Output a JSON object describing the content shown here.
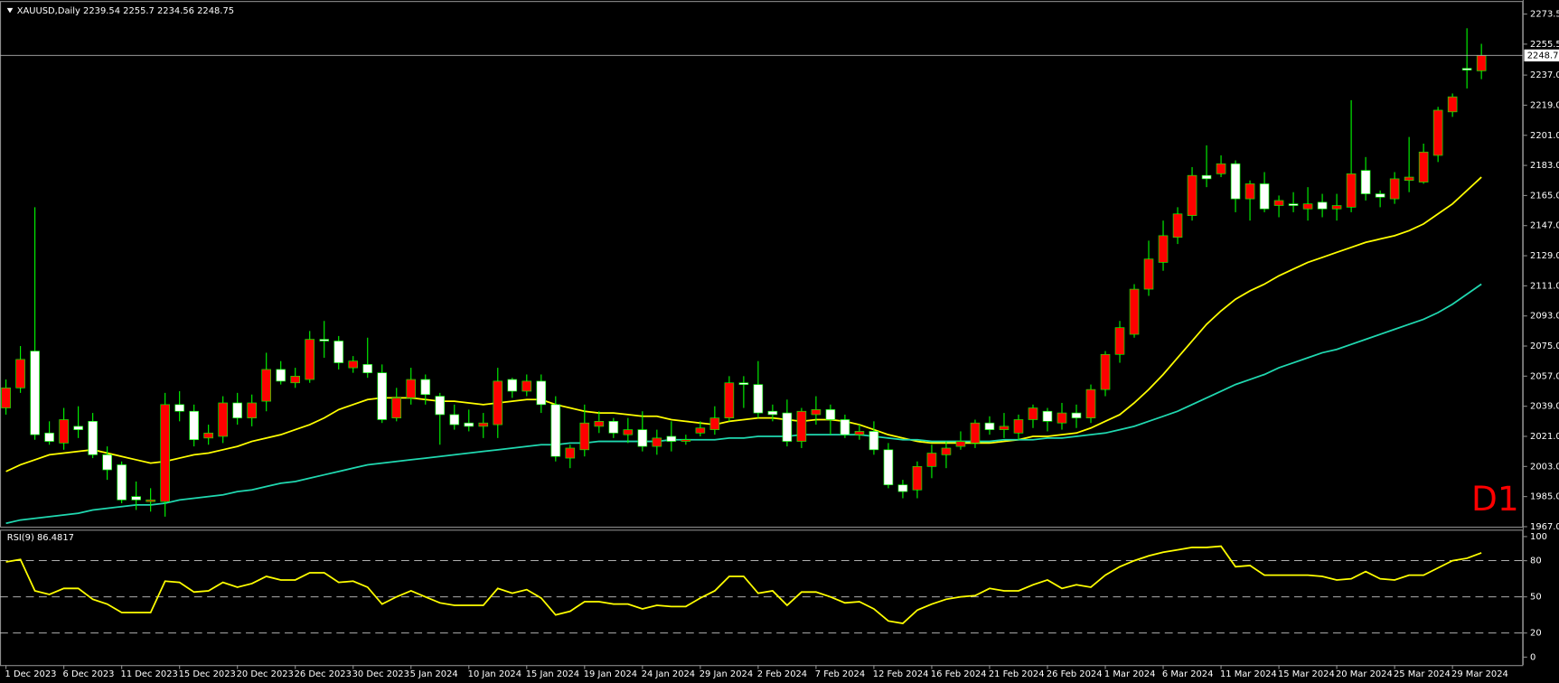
{
  "chart_data": [
    {
      "type": "candlestick",
      "title": "XAUUSD,Daily",
      "categories": [
        "1 Dec 2023",
        null,
        null,
        null,
        "6 Dec 2023",
        null,
        null,
        null,
        "11 Dec 2023",
        null,
        null,
        null,
        "15 Dec 2023",
        null,
        null,
        null,
        "20 Dec 2023",
        null,
        null,
        null,
        "26 Dec 2023",
        null,
        null,
        null,
        "30 Dec 2023",
        null,
        null,
        null,
        "5 Jan 2024",
        null,
        null,
        null,
        "10 Jan 2024",
        null,
        null,
        null,
        "15 Jan 2024",
        null,
        null,
        null,
        "19 Jan 2024",
        null,
        null,
        null,
        "24 Jan 2024",
        null,
        null,
        null,
        "29 Jan 2024",
        null,
        null,
        null,
        "2 Feb 2024",
        null,
        null,
        null,
        "7 Feb 2024",
        null,
        null,
        null,
        "12 Feb 2024",
        null,
        null,
        null,
        "16 Feb 2024",
        null,
        null,
        null,
        "21 Feb 2024",
        null,
        null,
        null,
        "26 Feb 2024",
        null,
        null,
        null,
        "1 Mar 2024",
        null,
        null,
        null,
        "6 Mar 2024",
        null,
        null,
        null,
        "11 Mar 2024",
        null,
        null,
        null,
        "15 Mar 2024",
        null,
        null,
        null,
        "20 Mar 2024",
        null,
        null,
        null,
        "25 Mar 2024",
        null,
        null,
        null,
        "29 Mar 2024",
        null,
        null
      ],
      "open": [
        2038,
        2050,
        2072,
        2023,
        2017,
        2027,
        2030,
        2010,
        2004,
        1985,
        1982,
        1982,
        2040,
        2036,
        2020,
        2021,
        2041,
        2032,
        2042,
        2061,
        2053,
        2055,
        2079,
        2078,
        2062,
        2064,
        2059,
        2032,
        2044,
        2055,
        2045,
        2034,
        2029,
        2027,
        2028,
        2055,
        2048,
        2054,
        2040,
        2008,
        2013,
        2027,
        2030,
        2022,
        2025,
        2015,
        2021,
        2018,
        2023,
        2025,
        2032,
        2053,
        2052,
        2036,
        2035,
        2018,
        2034,
        2037,
        2031,
        2022,
        2024,
        2013,
        1992,
        1989,
        2003,
        2010,
        2015,
        2017,
        2029,
        2025,
        2023,
        2031,
        2036,
        2029,
        2035,
        2032,
        2049,
        2070,
        2082,
        2109,
        2125,
        2140,
        2153,
        2177,
        2178,
        2184,
        2163,
        2172,
        2159,
        2160,
        2157,
        2161,
        2157,
        2158,
        2180,
        2166,
        2163,
        2174,
        2173,
        2189,
        2215,
        2241,
        2239.54
      ],
      "high": [
        2055,
        2075,
        2158,
        2030,
        2038,
        2039,
        2035,
        2015,
        2006,
        1994,
        1990,
        2047,
        2048,
        2040,
        2028,
        2045,
        2047,
        2046,
        2071,
        2066,
        2062,
        2084,
        2090,
        2081,
        2069,
        2080,
        2064,
        2050,
        2062,
        2058,
        2047,
        2040,
        2037,
        2035,
        2062,
        2056,
        2058,
        2058,
        2045,
        2016,
        2040,
        2036,
        2032,
        2032,
        2036,
        2025,
        2030,
        2022,
        2030,
        2039,
        2057,
        2057,
        2066,
        2040,
        2043,
        2038,
        2045,
        2040,
        2034,
        2028,
        2030,
        2017,
        1995,
        2006,
        2016,
        2018,
        2024,
        2031,
        2033,
        2035,
        2034,
        2040,
        2038,
        2041,
        2040,
        2052,
        2072,
        2090,
        2112,
        2138,
        2150,
        2158,
        2182,
        2195,
        2189,
        2186,
        2174,
        2179,
        2165,
        2167,
        2170,
        2166,
        2166,
        2222,
        2188,
        2168,
        2179,
        2200,
        2196,
        2218,
        2226,
        2265,
        2255.7
      ],
      "low": [
        2034,
        2047,
        2019,
        2016,
        2013,
        2020,
        2008,
        1995,
        1981,
        1977,
        1976,
        1973,
        2030,
        2015,
        2016,
        2017,
        2028,
        2027,
        2036,
        2052,
        2050,
        2053,
        2068,
        2061,
        2059,
        2056,
        2029,
        2030,
        2040,
        2040,
        2016,
        2025,
        2024,
        2020,
        2020,
        2044,
        2045,
        2035,
        2006,
        2002,
        2009,
        2023,
        2020,
        2017,
        2012,
        2010,
        2012,
        2016,
        2021,
        2022,
        2030,
        2038,
        2032,
        2030,
        2015,
        2014,
        2028,
        2022,
        2020,
        2019,
        2010,
        1990,
        1984,
        1984,
        1996,
        2002,
        2013,
        2014,
        2022,
        2020,
        2019,
        2026,
        2024,
        2025,
        2026,
        2029,
        2045,
        2065,
        2080,
        2105,
        2120,
        2136,
        2150,
        2170,
        2176,
        2155,
        2150,
        2155,
        2152,
        2155,
        2150,
        2152,
        2150,
        2155,
        2162,
        2158,
        2160,
        2167,
        2172,
        2185,
        2212,
        2229,
        2234.56
      ],
      "close": [
        2050,
        2067,
        2022,
        2018,
        2031,
        2025,
        2010,
        2001,
        1983,
        1983,
        1983,
        2040,
        2036,
        2019,
        2023,
        2041,
        2032,
        2041,
        2061,
        2054,
        2057,
        2079,
        2078,
        2065,
        2066,
        2059,
        2031,
        2044,
        2055,
        2046,
        2034,
        2028,
        2027,
        2029,
        2054,
        2048,
        2054,
        2040,
        2009,
        2014,
        2029,
        2030,
        2023,
        2025,
        2015,
        2020,
        2018,
        2019,
        2026,
        2032,
        2053,
        2052,
        2035,
        2034,
        2018,
        2036,
        2037,
        2031,
        2022,
        2024,
        2013,
        1992,
        1988,
        2003,
        2011,
        2014,
        2018,
        2029,
        2025,
        2027,
        2031,
        2038,
        2030,
        2035,
        2032,
        2049,
        2070,
        2086,
        2109,
        2127,
        2141,
        2154,
        2177,
        2175,
        2184,
        2163,
        2172,
        2157,
        2162,
        2159,
        2160,
        2157,
        2159,
        2178,
        2166,
        2164,
        2175,
        2176,
        2191,
        2216,
        2224,
        2240,
        2248.75
      ],
      "up_color": "#ff0000",
      "down_color": "#ffffff",
      "wick_color": "#00ff00",
      "series": [
        {
          "color": "#ffff00",
          "values": [
            2000,
            2004,
            2007,
            2010,
            2011,
            2012,
            2013,
            2011,
            2009,
            2007,
            2005,
            2006,
            2008,
            2010,
            2011,
            2013,
            2015,
            2018,
            2020,
            2022,
            2025,
            2028,
            2032,
            2037,
            2040,
            2043,
            2044,
            2044,
            2044,
            2043,
            2042,
            2042,
            2041,
            2040,
            2041,
            2042,
            2043,
            2043,
            2040,
            2038,
            2036,
            2035,
            2035,
            2034,
            2033,
            2033,
            2031,
            2030,
            2029,
            2028,
            2030,
            2031,
            2032,
            2032,
            2031,
            2030,
            2031,
            2031,
            2030,
            2028,
            2025,
            2022,
            2020,
            2018,
            2017,
            2017,
            2017,
            2017,
            2017,
            2018,
            2019,
            2021,
            2021,
            2022,
            2023,
            2026,
            2030,
            2034,
            2041,
            2049,
            2058,
            2068,
            2078,
            2088,
            2096,
            2103,
            2108,
            2112,
            2117,
            2121,
            2125,
            2128,
            2131,
            2134,
            2137,
            2139,
            2141,
            2144,
            2148,
            2154,
            2160,
            2168,
            2176
          ]
        },
        {
          "color": "#20d8b0",
          "values": [
            1969,
            1971,
            1972,
            1973,
            1974,
            1975,
            1977,
            1978,
            1979,
            1980,
            1980,
            1981,
            1983,
            1984,
            1985,
            1986,
            1988,
            1989,
            1991,
            1993,
            1994,
            1996,
            1998,
            2000,
            2002,
            2004,
            2005,
            2006,
            2007,
            2008,
            2009,
            2010,
            2011,
            2012,
            2013,
            2014,
            2015,
            2016,
            2016,
            2017,
            2017,
            2018,
            2018,
            2018,
            2018,
            2018,
            2019,
            2019,
            2019,
            2019,
            2020,
            2020,
            2021,
            2021,
            2021,
            2022,
            2022,
            2022,
            2022,
            2022,
            2021,
            2020,
            2019,
            2019,
            2018,
            2018,
            2018,
            2018,
            2018,
            2019,
            2019,
            2019,
            2020,
            2020,
            2021,
            2022,
            2023,
            2025,
            2027,
            2030,
            2033,
            2036,
            2040,
            2044,
            2048,
            2052,
            2055,
            2058,
            2062,
            2065,
            2068,
            2071,
            2073,
            2076,
            2079,
            2082,
            2085,
            2088,
            2091,
            2095,
            2100,
            2106,
            2112
          ]
        }
      ],
      "ylim": [
        1966.4,
        2280.7
      ],
      "yticks": [
        {
          "value": 1967,
          "label": "1967.00"
        },
        {
          "value": 1985,
          "label": "1985.00"
        },
        {
          "value": 2003,
          "label": "2003.00"
        },
        {
          "value": 2021,
          "label": "2021.00"
        },
        {
          "value": 2039,
          "label": "2039.00"
        },
        {
          "value": 2057,
          "label": "2057.00"
        },
        {
          "value": 2075,
          "label": "2075.00"
        },
        {
          "value": 2093,
          "label": "2093.00"
        },
        {
          "value": 2111,
          "label": "2111.00"
        },
        {
          "value": 2129,
          "label": "2129.00"
        },
        {
          "value": 2147,
          "label": "2147.00"
        },
        {
          "value": 2165,
          "label": "2165.00"
        },
        {
          "value": 2183,
          "label": "2183.00"
        },
        {
          "value": 2201,
          "label": "2201.00"
        },
        {
          "value": 2219,
          "label": "2219.00"
        },
        {
          "value": 2237,
          "label": "2237.00"
        },
        {
          "value": 2255.5,
          "label": "2255.50"
        },
        {
          "value": 2273.5,
          "label": "2273.50"
        }
      ],
      "annotation": "D1",
      "annotation_color": "#ff0000"
    },
    {
      "type": "line",
      "title": "RSI(9)",
      "color": "#ffff00",
      "values": [
        79,
        81,
        55,
        52,
        57,
        57,
        48,
        44,
        37,
        37,
        37,
        63,
        62,
        54,
        55,
        62,
        58,
        61,
        67,
        64,
        64,
        70,
        70,
        62,
        63,
        58,
        44,
        50,
        55,
        50,
        45,
        43,
        43,
        43,
        57,
        53,
        56,
        49,
        35,
        38,
        46,
        46,
        44,
        44,
        40,
        43,
        42,
        42,
        49,
        55,
        67,
        67,
        53,
        55,
        43,
        54,
        54,
        50,
        45,
        46,
        40,
        30,
        28,
        39,
        44,
        48,
        50,
        51,
        57,
        55,
        55,
        60,
        64,
        57,
        60,
        58,
        68,
        75,
        80,
        84,
        87,
        89,
        91,
        91,
        92,
        75,
        76,
        68,
        68,
        68,
        68,
        67,
        64,
        65,
        71,
        65,
        64,
        68,
        68,
        74,
        80,
        82,
        86.4817
      ],
      "ylim": [
        -6.6,
        104.9
      ],
      "yticks": [
        0,
        20,
        50,
        80,
        100
      ],
      "levels": [
        20,
        50,
        80
      ]
    }
  ]
}
